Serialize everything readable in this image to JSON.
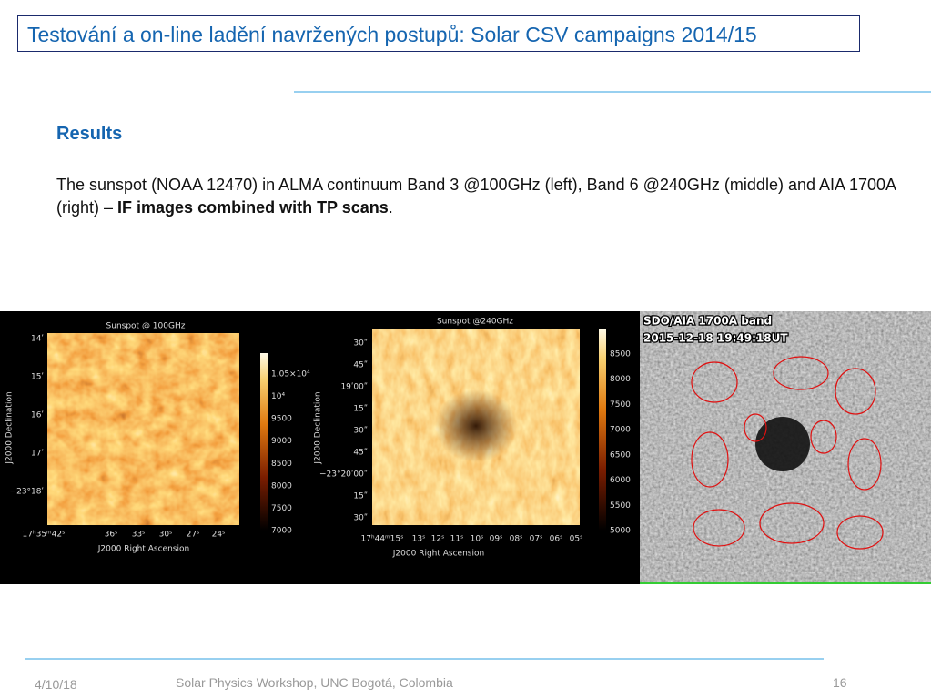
{
  "header": {
    "title": "Testování a on-line ladění navržených postupů: Solar CSV campaigns 2014/15"
  },
  "body": {
    "heading": "Results",
    "paragraph": {
      "text_before": "The sunspot (NOAA 12470) in ALMA continuum Band 3 @100GHz (left), Band 6 @240GHz (middle) and AIA 1700A (right) – ",
      "bold": "IF images combined with TP scans",
      "text_after": "."
    }
  },
  "images": [
    {
      "title": "Sunspot @ 100GHz",
      "yaxis_label": "J2000 Declination",
      "xaxis_label": "J2000 Right Ascension",
      "yticks": [
        "14ʹ",
        "15ʹ",
        "16ʹ",
        "17ʹ",
        "−23°18ʹ"
      ],
      "xticks": [
        "17ʰ35ᵐ42ˢ",
        "36ˢ",
        "33ˢ",
        "30ˢ",
        "27ˢ",
        "24ˢ"
      ],
      "colorbar_ticks": [
        "1.05×10⁴",
        "10⁴",
        "9500",
        "9000",
        "8500",
        "8000",
        "7500",
        "7000"
      ]
    },
    {
      "title": "Sunspot @240GHz",
      "yaxis_label": "J2000 Declination",
      "xaxis_label": "J2000 Right Ascension",
      "yticks": [
        "30ʺ",
        "45ʺ",
        "19ʹ00ʺ",
        "15ʺ",
        "30ʺ",
        "45ʺ",
        "−23°20ʹ00ʺ",
        "15ʺ",
        "30ʺ"
      ],
      "xticks": [
        "17ʰ44ᵐ15ˢ",
        "13ˢ",
        "12ˢ",
        "11ˢ",
        "10ˢ",
        "09ˢ",
        "08ˢ",
        "07ˢ",
        "06ˢ",
        "05ˢ"
      ],
      "colorbar_ticks": [
        "8500",
        "8000",
        "7500",
        "7000",
        "6500",
        "6000",
        "5500",
        "5000"
      ]
    },
    {
      "title": "SDO/AIA 1700A band",
      "subtitle": "2015-12-18 19:49:18UT"
    }
  ],
  "footer": {
    "date": "4/10/18",
    "event": "Solar Physics Workshop, UNC Bogotá, Colombia",
    "page": "16"
  }
}
